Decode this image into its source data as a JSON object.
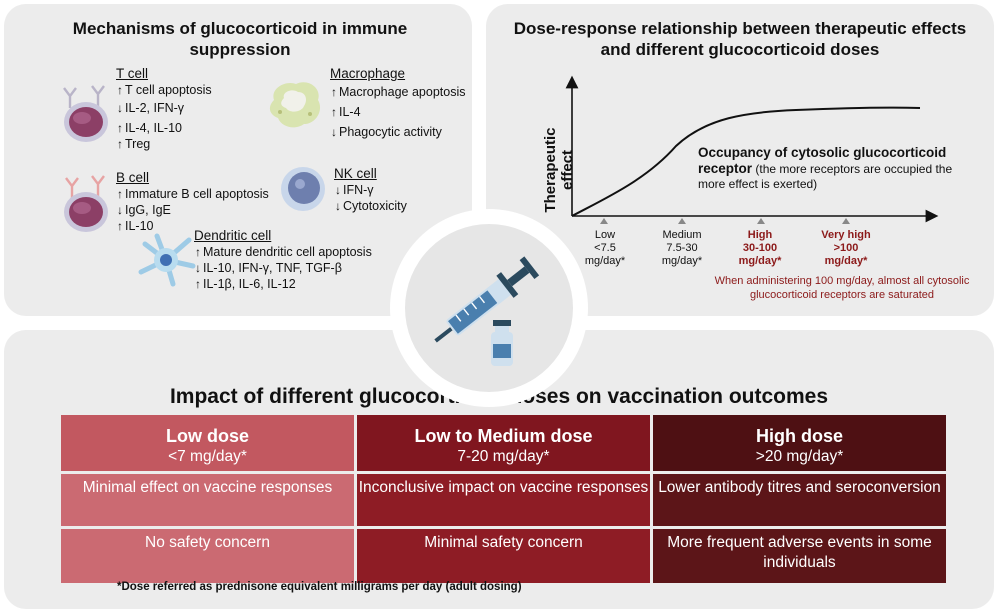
{
  "left_panel": {
    "title": "Mechanisms of glucocorticoid in immune suppression",
    "cells": [
      {
        "name": "T cell",
        "effects": [
          {
            "dir": "↑",
            "text": "T cell apoptosis"
          },
          {
            "dir": "↓",
            "text": "IL-2, IFN-γ"
          },
          {
            "dir": "↑",
            "text": "IL-4, IL-10"
          },
          {
            "dir": "↑",
            "text": "Treg"
          }
        ]
      },
      {
        "name": "Macrophage",
        "effects": [
          {
            "dir": "↑",
            "text": "Macrophage apoptosis"
          },
          {
            "dir": "↑",
            "text": "IL-4"
          },
          {
            "dir": "↓",
            "text": "Phagocytic activity"
          }
        ]
      },
      {
        "name": "B cell",
        "effects": [
          {
            "dir": "↑",
            "text": "Immature B cell apoptosis"
          },
          {
            "dir": "↓",
            "text": "IgG, IgE"
          },
          {
            "dir": "↑",
            "text": "IL-10"
          }
        ]
      },
      {
        "name": "NK cell",
        "effects": [
          {
            "dir": "↓",
            "text": "IFN-γ"
          },
          {
            "dir": "↓",
            "text": "Cytotoxicity"
          }
        ]
      },
      {
        "name": "Dendritic cell",
        "effects": [
          {
            "dir": "↑",
            "text": "Mature dendritic cell apoptosis"
          },
          {
            "dir": "↓",
            "text": "IL-10, IFN-γ, TNF, TGF-β"
          },
          {
            "dir": "↑",
            "text": "IL-1β, IL-6, IL-12"
          }
        ]
      }
    ]
  },
  "right_panel": {
    "title": "Dose-response relationship between therapeutic effects and different glucocorticoid doses",
    "y_label": "Therapeutic effect",
    "occupancy_title": "Occupancy of cytosolic glucocorticoid receptor",
    "occupancy_text": "(the more receptors are occupied the more effect is exerted)",
    "doses": [
      {
        "name": "Low",
        "range": "<7.5",
        "unit": "mg/day*"
      },
      {
        "name": "Medium",
        "range": "7.5-30",
        "unit": "mg/day*"
      },
      {
        "name": "High",
        "range": "30-100",
        "unit": "mg/day*"
      },
      {
        "name": "Very high",
        "range": ">100",
        "unit": "mg/day*"
      }
    ],
    "note": "When administering 100 mg/day, almost all cytosolic glucocorticoid receptors are saturated"
  },
  "bottom_panel": {
    "title": "Impact of different glucocorticoid doses on vaccination outcomes",
    "columns": [
      {
        "dose": "Low dose",
        "range": "<7 mg/day*",
        "effect": "Minimal effect on vaccine responses",
        "safety": "No safety concern"
      },
      {
        "dose": "Low to Medium dose",
        "range": "7-20 mg/day*",
        "effect": "Inconclusive impact on vaccine responses",
        "safety": "Minimal safety concern"
      },
      {
        "dose": "High dose",
        "range": ">20 mg/day*",
        "effect": "Lower antibody titres and seroconversion",
        "safety": "More frequent adverse events in some individuals"
      }
    ],
    "footnote": "*Dose referred as prednisone equivalent milligrams per day (adult dosing)"
  },
  "colors": {
    "low": "#cb6a72",
    "medium": "#8e1c25",
    "high": "#5c1518",
    "accent_red": "#8c1a1a",
    "panel_bg": "#ececec"
  },
  "icons": [
    "t-cell-icon",
    "b-cell-icon",
    "macrophage-icon",
    "nk-cell-icon",
    "dendritic-cell-icon",
    "syringe-icon",
    "vial-icon"
  ]
}
